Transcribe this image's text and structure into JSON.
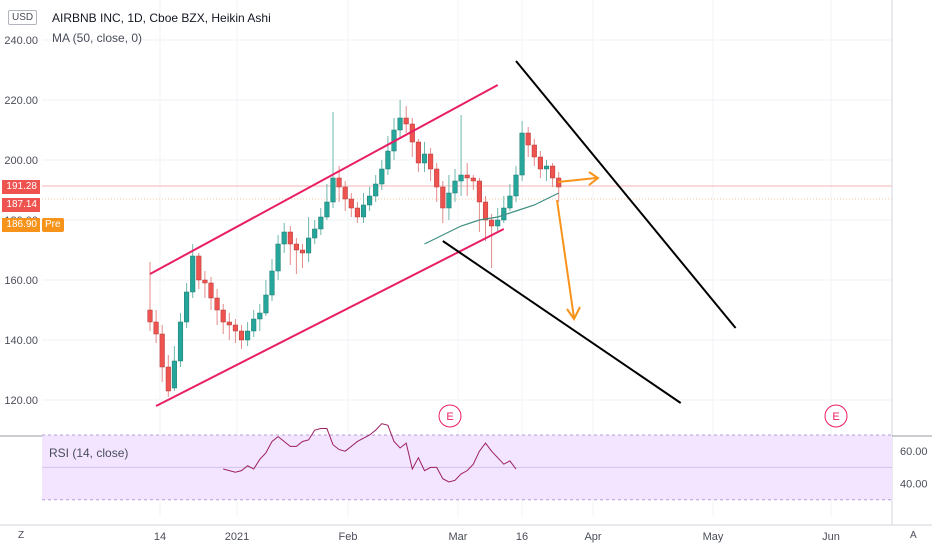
{
  "header": {
    "title": "AIRBNB INC, 1D, Cboe BZX, Heikin Ashi",
    "indicator": "MA (50, close, 0)",
    "unit": "USD"
  },
  "rsi": {
    "label": "RSI (14, close)",
    "ticks": [
      "60.00",
      "40.00"
    ]
  },
  "price_tags": {
    "last": "191.28",
    "ma": "187.14",
    "pre": "186.90",
    "pre_label": "Pre"
  },
  "corner": {
    "left": "Z",
    "right": "A"
  },
  "colors": {
    "up": "#26a69a",
    "down": "#ef5350",
    "channel": "#e91e63",
    "trend": "#000000",
    "arrow": "#f7931a",
    "ma": "#3f8f82",
    "rsi_line": "#9c1f5f",
    "rsi_bg": "#f3e5ff"
  },
  "chart_data": {
    "type": "candlestick",
    "price_axis": {
      "ticks": [
        240,
        220,
        200,
        180,
        160,
        140,
        120
      ],
      "range": [
        114,
        246
      ]
    },
    "time_axis": {
      "labels": [
        "14",
        "2021",
        "Feb",
        "Mar",
        "16",
        "Apr",
        "May",
        "Jun"
      ]
    },
    "candles": [
      {
        "o": 150,
        "c": 146,
        "h": 166,
        "l": 143
      },
      {
        "o": 146,
        "c": 142,
        "h": 150,
        "l": 139
      },
      {
        "o": 142,
        "c": 131,
        "h": 145,
        "l": 126
      },
      {
        "o": 131,
        "c": 123,
        "h": 135,
        "l": 121
      },
      {
        "o": 124,
        "c": 133,
        "h": 138,
        "l": 123
      },
      {
        "o": 133,
        "c": 146,
        "h": 149,
        "l": 131
      },
      {
        "o": 146,
        "c": 156,
        "h": 159,
        "l": 144
      },
      {
        "o": 156,
        "c": 168,
        "h": 172,
        "l": 154
      },
      {
        "o": 168,
        "c": 160,
        "h": 169,
        "l": 157
      },
      {
        "o": 160,
        "c": 159,
        "h": 163,
        "l": 154
      },
      {
        "o": 159,
        "c": 154,
        "h": 161,
        "l": 150
      },
      {
        "o": 154,
        "c": 150,
        "h": 157,
        "l": 145
      },
      {
        "o": 150,
        "c": 146,
        "h": 152,
        "l": 142
      },
      {
        "o": 146,
        "c": 145,
        "h": 149,
        "l": 140
      },
      {
        "o": 145,
        "c": 143,
        "h": 147,
        "l": 139
      },
      {
        "o": 143,
        "c": 140,
        "h": 145,
        "l": 137
      },
      {
        "o": 140,
        "c": 143,
        "h": 146,
        "l": 138
      },
      {
        "o": 143,
        "c": 147,
        "h": 150,
        "l": 141
      },
      {
        "o": 147,
        "c": 149,
        "h": 152,
        "l": 143
      },
      {
        "o": 149,
        "c": 155,
        "h": 160,
        "l": 148
      },
      {
        "o": 155,
        "c": 163,
        "h": 167,
        "l": 153
      },
      {
        "o": 163,
        "c": 172,
        "h": 175,
        "l": 160
      },
      {
        "o": 172,
        "c": 176,
        "h": 179,
        "l": 169
      },
      {
        "o": 176,
        "c": 172,
        "h": 178,
        "l": 165
      },
      {
        "o": 172,
        "c": 170,
        "h": 174,
        "l": 162
      },
      {
        "o": 170,
        "c": 169,
        "h": 172,
        "l": 164
      },
      {
        "o": 169,
        "c": 174,
        "h": 181,
        "l": 166
      },
      {
        "o": 174,
        "c": 177,
        "h": 180,
        "l": 172
      },
      {
        "o": 177,
        "c": 181,
        "h": 184,
        "l": 175
      },
      {
        "o": 181,
        "c": 186,
        "h": 192,
        "l": 180
      },
      {
        "o": 186,
        "c": 194,
        "h": 216,
        "l": 184
      },
      {
        "o": 194,
        "c": 191,
        "h": 198,
        "l": 186
      },
      {
        "o": 191,
        "c": 187,
        "h": 193,
        "l": 183
      },
      {
        "o": 187,
        "c": 184,
        "h": 189,
        "l": 181
      },
      {
        "o": 184,
        "c": 181,
        "h": 186,
        "l": 179
      },
      {
        "o": 181,
        "c": 185,
        "h": 189,
        "l": 179
      },
      {
        "o": 185,
        "c": 188,
        "h": 191,
        "l": 183
      },
      {
        "o": 188,
        "c": 192,
        "h": 195,
        "l": 186
      },
      {
        "o": 192,
        "c": 197,
        "h": 200,
        "l": 190
      },
      {
        "o": 197,
        "c": 203,
        "h": 208,
        "l": 195
      },
      {
        "o": 203,
        "c": 210,
        "h": 214,
        "l": 200
      },
      {
        "o": 210,
        "c": 214,
        "h": 220,
        "l": 207
      },
      {
        "o": 214,
        "c": 212,
        "h": 218,
        "l": 209
      },
      {
        "o": 212,
        "c": 206,
        "h": 214,
        "l": 201
      },
      {
        "o": 206,
        "c": 199,
        "h": 207,
        "l": 196
      },
      {
        "o": 199,
        "c": 202,
        "h": 206,
        "l": 196
      },
      {
        "o": 202,
        "c": 197,
        "h": 204,
        "l": 193
      },
      {
        "o": 197,
        "c": 191,
        "h": 199,
        "l": 186
      },
      {
        "o": 191,
        "c": 184,
        "h": 193,
        "l": 179
      },
      {
        "o": 184,
        "c": 189,
        "h": 195,
        "l": 180
      },
      {
        "o": 189,
        "c": 193,
        "h": 197,
        "l": 186
      },
      {
        "o": 193,
        "c": 195,
        "h": 215,
        "l": 188
      },
      {
        "o": 195,
        "c": 194,
        "h": 199,
        "l": 188
      },
      {
        "o": 194,
        "c": 193,
        "h": 195,
        "l": 190
      },
      {
        "o": 193,
        "c": 186,
        "h": 194,
        "l": 176
      },
      {
        "o": 186,
        "c": 180,
        "h": 188,
        "l": 173
      },
      {
        "o": 180,
        "c": 178,
        "h": 182,
        "l": 164
      },
      {
        "o": 178,
        "c": 180,
        "h": 184,
        "l": 176
      },
      {
        "o": 180,
        "c": 184,
        "h": 188,
        "l": 179
      },
      {
        "o": 184,
        "c": 188,
        "h": 192,
        "l": 183
      },
      {
        "o": 188,
        "c": 195,
        "h": 198,
        "l": 186
      },
      {
        "o": 195,
        "c": 209,
        "h": 213,
        "l": 193
      },
      {
        "o": 209,
        "c": 205,
        "h": 211,
        "l": 201
      },
      {
        "o": 205,
        "c": 201,
        "h": 207,
        "l": 198
      },
      {
        "o": 201,
        "c": 197,
        "h": 203,
        "l": 194
      },
      {
        "o": 197,
        "c": 198,
        "h": 200,
        "l": 193
      },
      {
        "o": 198,
        "c": 194,
        "h": 199,
        "l": 191
      },
      {
        "o": 194,
        "c": 191,
        "h": 196,
        "l": 186
      }
    ],
    "ma50": [
      {
        "i": 45,
        "v": 172
      },
      {
        "i": 48,
        "v": 175
      },
      {
        "i": 51,
        "v": 178
      },
      {
        "i": 54,
        "v": 180
      },
      {
        "i": 57,
        "v": 181
      },
      {
        "i": 60,
        "v": 183
      },
      {
        "i": 63,
        "v": 185
      },
      {
        "i": 66,
        "v": 188
      },
      {
        "i": 67,
        "v": 189
      }
    ],
    "rsi_values": [
      {
        "i": 12,
        "v": 49
      },
      {
        "i": 14,
        "v": 47
      },
      {
        "i": 15,
        "v": 48
      },
      {
        "i": 16,
        "v": 51
      },
      {
        "i": 17,
        "v": 49
      },
      {
        "i": 18,
        "v": 55
      },
      {
        "i": 19,
        "v": 59
      },
      {
        "i": 20,
        "v": 66
      },
      {
        "i": 21,
        "v": 69
      },
      {
        "i": 22,
        "v": 66
      },
      {
        "i": 23,
        "v": 63
      },
      {
        "i": 24,
        "v": 63
      },
      {
        "i": 25,
        "v": 66
      },
      {
        "i": 26,
        "v": 67
      },
      {
        "i": 27,
        "v": 73
      },
      {
        "i": 28,
        "v": 74
      },
      {
        "i": 29,
        "v": 74
      },
      {
        "i": 30,
        "v": 64
      },
      {
        "i": 31,
        "v": 61
      },
      {
        "i": 32,
        "v": 60
      },
      {
        "i": 33,
        "v": 63
      },
      {
        "i": 34,
        "v": 66
      },
      {
        "i": 35,
        "v": 68
      },
      {
        "i": 36,
        "v": 70
      },
      {
        "i": 37,
        "v": 73
      },
      {
        "i": 38,
        "v": 77
      },
      {
        "i": 39,
        "v": 76
      },
      {
        "i": 40,
        "v": 66
      },
      {
        "i": 41,
        "v": 62
      },
      {
        "i": 42,
        "v": 65
      },
      {
        "i": 43,
        "v": 49
      },
      {
        "i": 44,
        "v": 56
      },
      {
        "i": 45,
        "v": 48
      },
      {
        "i": 46,
        "v": 50
      },
      {
        "i": 47,
        "v": 50
      },
      {
        "i": 48,
        "v": 43
      },
      {
        "i": 49,
        "v": 41
      },
      {
        "i": 50,
        "v": 42
      },
      {
        "i": 51,
        "v": 46
      },
      {
        "i": 52,
        "v": 48
      },
      {
        "i": 53,
        "v": 52
      },
      {
        "i": 54,
        "v": 60
      },
      {
        "i": 55,
        "v": 65
      },
      {
        "i": 56,
        "v": 60
      },
      {
        "i": 57,
        "v": 56
      },
      {
        "i": 58,
        "v": 52
      },
      {
        "i": 59,
        "v": 54
      },
      {
        "i": 60,
        "v": 49
      }
    ],
    "channel_upper": [
      {
        "i": 0,
        "v": 162
      },
      {
        "i": 57,
        "v": 225
      }
    ],
    "channel_lower": [
      {
        "i": 1,
        "v": 118
      },
      {
        "i": 58,
        "v": 177
      }
    ],
    "trend_upper": [
      {
        "i": 60,
        "v": 233
      },
      {
        "i": 96,
        "v": 144
      }
    ],
    "trend_lower": [
      {
        "i": 48,
        "v": 173
      },
      {
        "i": 87,
        "v": 119
      }
    ],
    "earnings_markers": [
      "E",
      "E"
    ]
  }
}
